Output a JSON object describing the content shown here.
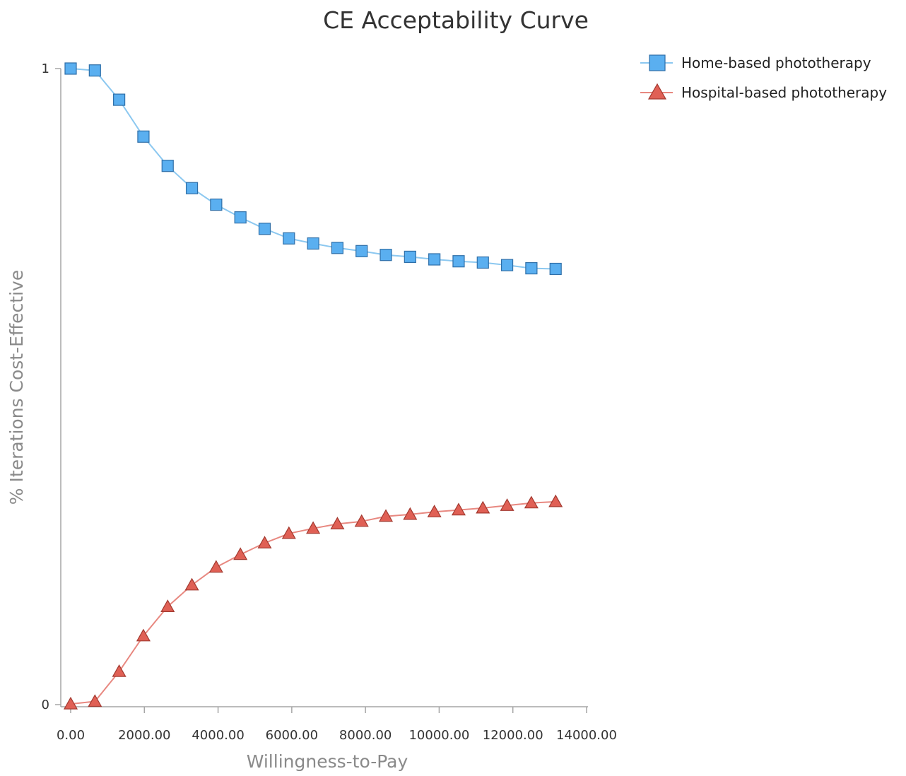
{
  "chart_data": {
    "type": "line",
    "title": "CE Acceptability Curve",
    "xlabel": "Willingness-to-Pay",
    "ylabel": "% Iterations Cost-Effective",
    "xlim": [
      0,
      14000
    ],
    "ylim": [
      0,
      1
    ],
    "x_ticks": [
      "0.00",
      "2000.00",
      "4000.00",
      "6000.00",
      "8000.00",
      "10000.00",
      "12000.00",
      "14000.00"
    ],
    "y_ticks": [
      "0",
      "1"
    ],
    "grid": false,
    "legend_position": "top-right",
    "x": [
      0,
      658,
      1316,
      1974,
      2632,
      3290,
      3948,
      4606,
      5264,
      5922,
      6580,
      7238,
      7896,
      8554,
      9212,
      9870,
      10528,
      11186,
      11844,
      12502,
      13160
    ],
    "series": [
      {
        "name": "Home-based phototherapy",
        "marker": "square",
        "color": "#5aaff0",
        "line_color": "#8cc8f0",
        "values": [
          1.0,
          0.997,
          0.951,
          0.893,
          0.847,
          0.812,
          0.786,
          0.766,
          0.748,
          0.733,
          0.725,
          0.718,
          0.713,
          0.707,
          0.704,
          0.7,
          0.697,
          0.695,
          0.691,
          0.686,
          0.685
        ]
      },
      {
        "name": "Hospital-based phototherapy",
        "marker": "triangle",
        "color": "#e06055",
        "line_color": "#e88880",
        "values": [
          0.001,
          0.005,
          0.052,
          0.108,
          0.154,
          0.188,
          0.216,
          0.236,
          0.254,
          0.269,
          0.277,
          0.284,
          0.288,
          0.296,
          0.299,
          0.303,
          0.306,
          0.309,
          0.313,
          0.317,
          0.319
        ]
      }
    ]
  }
}
